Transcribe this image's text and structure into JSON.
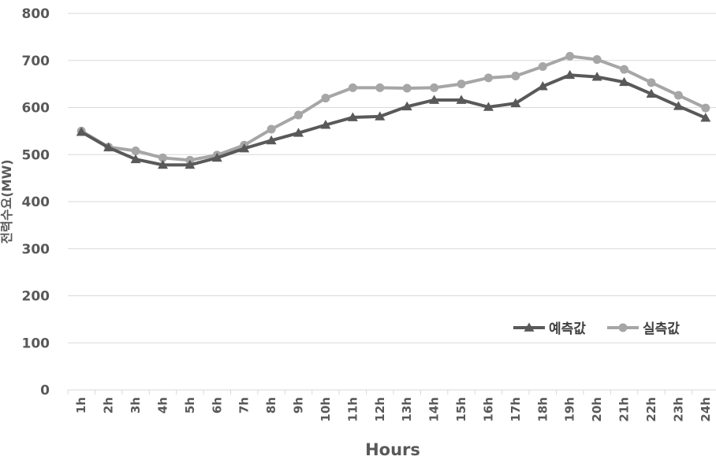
{
  "chart_data": {
    "type": "line",
    "title": "",
    "xlabel": "Hours",
    "ylabel": "전력수요(MW)",
    "ylim": [
      0,
      800
    ],
    "yticks": [
      "0",
      "100",
      "200",
      "300",
      "400",
      "500",
      "600",
      "700",
      "800"
    ],
    "grid": true,
    "legend_position": "bottom-right",
    "categories": [
      "1h",
      "2h",
      "3h",
      "4h",
      "5h",
      "6h",
      "7h",
      "8h",
      "9h",
      "10h",
      "11h",
      "12h",
      "13h",
      "14h",
      "15h",
      "16h",
      "17h",
      "18h",
      "19h",
      "20h",
      "21h",
      "22h",
      "23h",
      "24h"
    ],
    "series": [
      {
        "name": "예측값",
        "color": "#595959",
        "marker": "triangle",
        "values": [
          548,
          515,
          490,
          478,
          478,
          493,
          513,
          530,
          546,
          563,
          579,
          581,
          602,
          616,
          616,
          601,
          609,
          645,
          669,
          665,
          654,
          629,
          603,
          578
        ]
      },
      {
        "name": "실측값",
        "color": "#a6a6a6",
        "marker": "circle",
        "values": [
          550,
          516,
          508,
          493,
          488,
          499,
          520,
          554,
          584,
          620,
          642,
          642,
          641,
          642,
          650,
          663,
          667,
          687,
          709,
          702,
          681,
          653,
          626,
          599
        ]
      }
    ]
  }
}
